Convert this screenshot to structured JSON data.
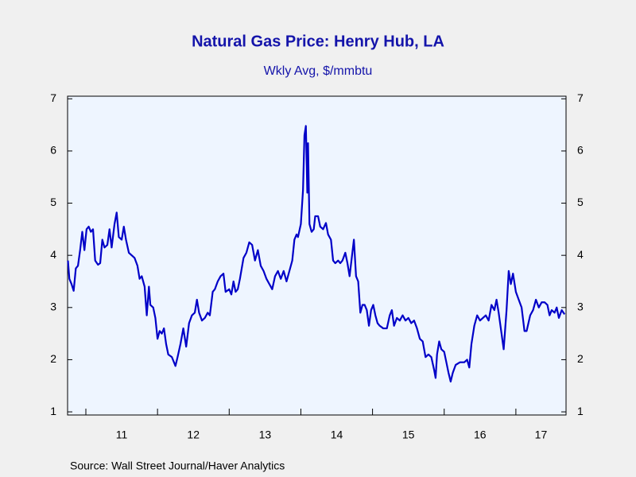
{
  "chart_data": {
    "type": "line",
    "title": "Natural Gas Price: Henry Hub, LA",
    "subtitle": "Wkly Avg, $/mmbtu",
    "source": "Source:  Wall Street Journal/Haver Analytics",
    "xlim": [
      2010.745,
      2017.7
    ],
    "xticks": [
      {
        "value": 2011.5,
        "label": "11"
      },
      {
        "value": 2012.5,
        "label": "12"
      },
      {
        "value": 2013.5,
        "label": "13"
      },
      {
        "value": 2014.5,
        "label": "14"
      },
      {
        "value": 2015.5,
        "label": "15"
      },
      {
        "value": 2016.5,
        "label": "16"
      },
      {
        "value": 2017.35,
        "label": "17"
      }
    ],
    "xtick_marks": [
      2011,
      2012,
      2013,
      2014,
      2015,
      2016,
      2017
    ],
    "ylim": [
      0.94,
      7.05
    ],
    "yticks": [
      1,
      2,
      3,
      4,
      5,
      6,
      7
    ],
    "y2lim": [
      0.94,
      7.05
    ],
    "y2ticks": [
      1,
      2,
      3,
      4,
      5,
      6,
      7
    ],
    "grid": false,
    "series": [
      {
        "color": "#0000c8",
        "x": [
          2010.75,
          2010.77,
          2010.8,
          2010.83,
          2010.86,
          2010.89,
          2010.92,
          2010.95,
          2010.98,
          2011.01,
          2011.04,
          2011.07,
          2011.1,
          2011.13,
          2011.17,
          2011.2,
          2011.23,
          2011.26,
          2011.3,
          2011.33,
          2011.36,
          2011.4,
          2011.43,
          2011.46,
          2011.5,
          2011.53,
          2011.56,
          2011.6,
          2011.64,
          2011.68,
          2011.72,
          2011.75,
          2011.78,
          2011.82,
          2011.85,
          2011.88,
          2011.9,
          2011.94,
          2011.97,
          2012.0,
          2012.03,
          2012.06,
          2012.09,
          2012.12,
          2012.15,
          2012.2,
          2012.25,
          2012.28,
          2012.32,
          2012.36,
          2012.4,
          2012.44,
          2012.48,
          2012.52,
          2012.55,
          2012.58,
          2012.62,
          2012.66,
          2012.7,
          2012.73,
          2012.77,
          2012.8,
          2012.84,
          2012.88,
          2012.92,
          2012.95,
          2013.0,
          2013.03,
          2013.06,
          2013.09,
          2013.12,
          2013.15,
          2013.2,
          2013.24,
          2013.28,
          2013.32,
          2013.36,
          2013.4,
          2013.44,
          2013.48,
          2013.52,
          2013.56,
          2013.6,
          2013.64,
          2013.68,
          2013.72,
          2013.76,
          2013.8,
          2013.84,
          2013.88,
          2013.91,
          2013.94,
          2013.96,
          2014.0,
          2014.03,
          2014.05,
          2014.07,
          2014.09,
          2014.1,
          2014.12,
          2014.15,
          2014.18,
          2014.2,
          2014.24,
          2014.27,
          2014.31,
          2014.35,
          2014.38,
          2014.42,
          2014.45,
          2014.48,
          2014.52,
          2014.55,
          2014.58,
          2014.62,
          2014.65,
          2014.68,
          2014.71,
          2014.74,
          2014.77,
          2014.8,
          2014.83,
          2014.86,
          2014.89,
          2014.92,
          2014.95,
          2014.98,
          2015.01,
          2015.04,
          2015.07,
          2015.1,
          2015.15,
          2015.2,
          2015.24,
          2015.27,
          2015.3,
          2015.34,
          2015.38,
          2015.42,
          2015.46,
          2015.5,
          2015.54,
          2015.58,
          2015.62,
          2015.66,
          2015.7,
          2015.74,
          2015.78,
          2015.82,
          2015.86,
          2015.88,
          2015.9,
          2015.93,
          2015.96,
          2016.0,
          2016.03,
          2016.06,
          2016.09,
          2016.12,
          2016.16,
          2016.22,
          2016.28,
          2016.32,
          2016.35,
          2016.38,
          2016.42,
          2016.46,
          2016.5,
          2016.54,
          2016.58,
          2016.62,
          2016.66,
          2016.7,
          2016.73,
          2016.76,
          2016.8,
          2016.83,
          2016.87,
          2016.9,
          2016.93,
          2016.96,
          2017.0,
          2017.04,
          2017.08,
          2017.12,
          2017.15,
          2017.2,
          2017.24,
          2017.28,
          2017.32,
          2017.36,
          2017.4,
          2017.44,
          2017.47,
          2017.5,
          2017.54,
          2017.57,
          2017.6,
          2017.64,
          2017.68
        ],
        "values": [
          3.9,
          3.55,
          3.45,
          3.32,
          3.75,
          3.8,
          4.1,
          4.45,
          4.1,
          4.5,
          4.55,
          4.45,
          4.5,
          3.9,
          3.82,
          3.85,
          4.3,
          4.15,
          4.2,
          4.5,
          4.15,
          4.6,
          4.82,
          4.35,
          4.3,
          4.55,
          4.3,
          4.05,
          4.0,
          3.95,
          3.8,
          3.55,
          3.6,
          3.4,
          2.85,
          3.4,
          3.05,
          3.0,
          2.8,
          2.4,
          2.55,
          2.5,
          2.6,
          2.3,
          2.1,
          2.05,
          1.88,
          2.05,
          2.3,
          2.6,
          2.25,
          2.7,
          2.85,
          2.9,
          3.15,
          2.9,
          2.75,
          2.8,
          2.9,
          2.85,
          3.3,
          3.35,
          3.5,
          3.6,
          3.65,
          3.3,
          3.35,
          3.25,
          3.5,
          3.3,
          3.35,
          3.55,
          3.95,
          4.05,
          4.25,
          4.2,
          3.9,
          4.1,
          3.8,
          3.7,
          3.55,
          3.45,
          3.35,
          3.6,
          3.7,
          3.55,
          3.7,
          3.5,
          3.7,
          3.9,
          4.3,
          4.4,
          4.35,
          4.6,
          5.25,
          6.3,
          6.48,
          5.2,
          6.15,
          4.6,
          4.45,
          4.5,
          4.75,
          4.75,
          4.55,
          4.5,
          4.62,
          4.4,
          4.3,
          3.9,
          3.85,
          3.9,
          3.85,
          3.9,
          4.05,
          3.85,
          3.6,
          3.95,
          4.3,
          3.6,
          3.5,
          2.9,
          3.05,
          3.05,
          2.95,
          2.65,
          2.95,
          3.05,
          2.85,
          2.7,
          2.65,
          2.6,
          2.6,
          2.85,
          2.95,
          2.65,
          2.8,
          2.75,
          2.85,
          2.75,
          2.8,
          2.7,
          2.75,
          2.6,
          2.4,
          2.35,
          2.05,
          2.1,
          2.05,
          1.8,
          1.65,
          2.1,
          2.35,
          2.2,
          2.15,
          1.95,
          1.75,
          1.58,
          1.75,
          1.9,
          1.95,
          1.95,
          2.0,
          1.85,
          2.3,
          2.65,
          2.85,
          2.75,
          2.8,
          2.85,
          2.75,
          3.05,
          2.95,
          3.15,
          2.9,
          2.5,
          2.2,
          2.95,
          3.7,
          3.45,
          3.65,
          3.3,
          3.15,
          3.0,
          2.55,
          2.55,
          2.85,
          2.95,
          3.15,
          3.0,
          3.1,
          3.1,
          3.05,
          2.85,
          2.95,
          2.9,
          3.0,
          2.8,
          2.95,
          2.87
        ]
      }
    ]
  }
}
